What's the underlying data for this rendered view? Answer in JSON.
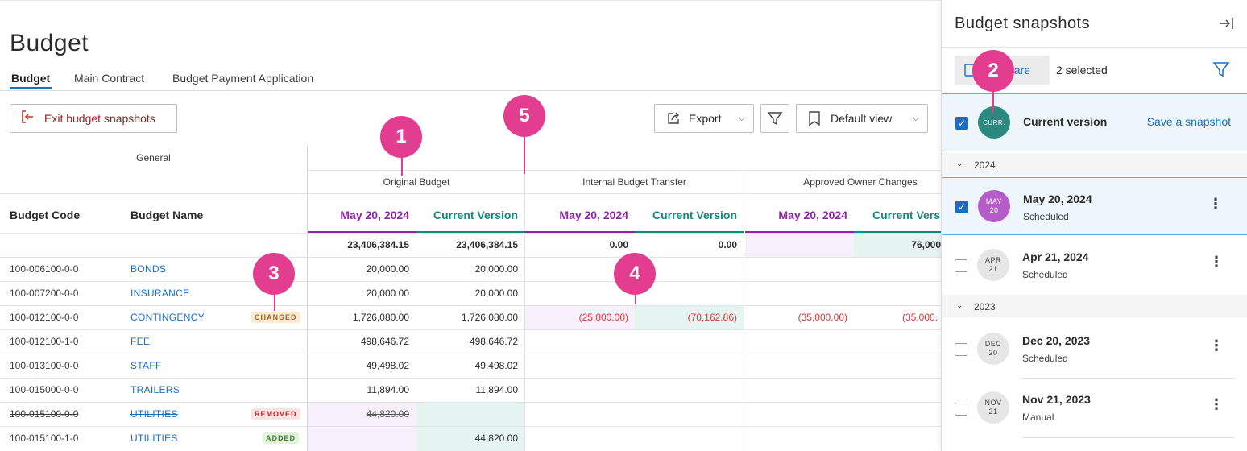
{
  "page": {
    "title": "Budget"
  },
  "tabs": [
    {
      "label": "Budget"
    },
    {
      "label": "Main Contract"
    },
    {
      "label": "Budget Payment Application"
    }
  ],
  "toolbar": {
    "exit_label": "Exit budget snapshots",
    "export_label": "Export",
    "view_label": "Default view"
  },
  "grid": {
    "group_general": "General",
    "groups": [
      "Original Budget",
      "Internal Budget Transfer",
      "Approved Owner Changes"
    ],
    "col_code": "Budget Code",
    "col_name": "Budget Name",
    "col_date": "May 20, 2024",
    "col_current": "Current Version",
    "col_current_cut": "Current Vers",
    "totals": [
      "23,406,384.15",
      "23,406,384.15",
      "0.00",
      "0.00",
      "76,000"
    ],
    "rows": [
      {
        "code": "100-006100-0-0",
        "name": "BONDS",
        "ob_date": "20,000.00",
        "ob_cur": "20,000.00"
      },
      {
        "code": "100-007200-0-0",
        "name": "INSURANCE",
        "ob_date": "20,000.00",
        "ob_cur": "20,000.00"
      },
      {
        "code": "100-012100-0-0",
        "name": "CONTINGENCY",
        "badge": "CHANGED",
        "ob_date": "1,726,080.00",
        "ob_cur": "1,726,080.00",
        "ibt_date": "(25,000.00)",
        "ibt_cur": "(70,162.86)",
        "aoc_date": "(35,000.00)",
        "aoc_cur": "(35,000."
      },
      {
        "code": "100-012100-1-0",
        "name": "FEE",
        "ob_date": "498,646.72",
        "ob_cur": "498,646.72"
      },
      {
        "code": "100-013100-0-0",
        "name": "STAFF",
        "ob_date": "49,498.02",
        "ob_cur": "49,498.02"
      },
      {
        "code": "100-015000-0-0",
        "name": "TRAILERS",
        "ob_date": "11,894.00",
        "ob_cur": "11,894.00"
      },
      {
        "code": "100-015100-0-0",
        "name": "UTILITIES",
        "badge": "REMOVED",
        "ob_date": "44,820.00",
        "ob_cur": ""
      },
      {
        "code": "100-015100-1-0",
        "name": "UTILITIES",
        "badge": "ADDED",
        "ob_date": "",
        "ob_cur": "44,820.00"
      }
    ]
  },
  "markers": [
    "1",
    "2",
    "3",
    "4",
    "5"
  ],
  "panel": {
    "title": "Budget snapshots",
    "compare_label": "Compare",
    "compare_visible": "pare",
    "selected_text": "2 selected",
    "current": {
      "avatar": "CURR.",
      "name": "Current version",
      "action": "Save a snapshot"
    },
    "years": [
      "2024",
      "2023"
    ],
    "snapshots": [
      {
        "month": "MAY",
        "day": "20",
        "name": "May 20, 2024",
        "type": "Scheduled"
      },
      {
        "month": "APR",
        "day": "21",
        "name": "Apr 21, 2024",
        "type": "Scheduled"
      },
      {
        "month": "DEC",
        "day": "20",
        "name": "Dec 20, 2023",
        "type": "Scheduled"
      },
      {
        "month": "NOV",
        "day": "21",
        "name": "Nov 21, 2023",
        "type": "Manual"
      }
    ]
  },
  "colors": {
    "accent": "#1a6ec2",
    "marker": "#e23d8f",
    "date": "#8e24aa",
    "current": "#148a7f"
  },
  "icons": [
    "exit-icon",
    "export-icon",
    "filter-icon",
    "bookmark-icon",
    "chevron-down-icon",
    "collapse-panel-icon",
    "compare-icon",
    "kebab-icon",
    "checkbox-icon"
  ]
}
